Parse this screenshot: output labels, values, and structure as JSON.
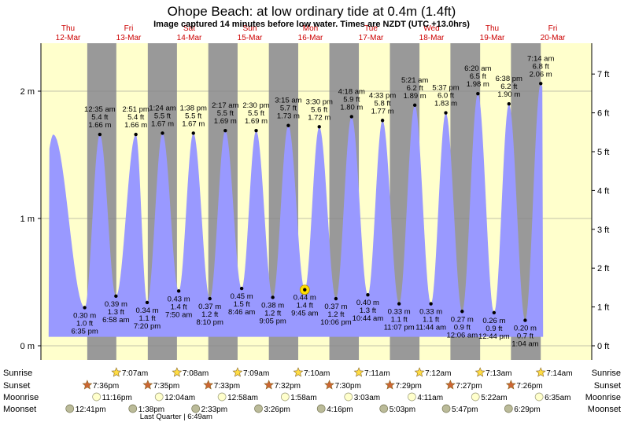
{
  "title": "Ohope Beach: at low  ordinary tide at 0.4m (1.4ft)",
  "subtitle": "Image captured 14 minutes before low water. Times are NZDT (UTC +13.0hrs)",
  "chart_data": {
    "type": "area",
    "x_range": [
      "2026-03-12T00:00",
      "2026-03-20T08:00"
    ],
    "ylim_m": [
      0,
      2.4
    ],
    "ylim_ft": [
      0,
      7.8
    ],
    "y_ticks_m": [
      {
        "v": 0,
        "label": "0 m"
      },
      {
        "v": 1,
        "label": "1 m"
      },
      {
        "v": 2,
        "label": "2 m"
      }
    ],
    "y_ticks_ft": [
      {
        "v": 0,
        "label": "0 ft"
      },
      {
        "v": 1,
        "label": "1 ft"
      },
      {
        "v": 2,
        "label": "2 ft"
      },
      {
        "v": 3,
        "label": "3 ft"
      },
      {
        "v": 4,
        "label": "4 ft"
      },
      {
        "v": 5,
        "label": "5 ft"
      },
      {
        "v": 6,
        "label": "6 ft"
      },
      {
        "v": 7,
        "label": "7 ft"
      }
    ],
    "days": [
      {
        "dow": "Thu",
        "date": "12-Mar",
        "day": 12
      },
      {
        "dow": "Fri",
        "date": "13-Mar",
        "day": 13
      },
      {
        "dow": "Sat",
        "date": "14-Mar",
        "day": 14
      },
      {
        "dow": "Sun",
        "date": "15-Mar",
        "day": 15
      },
      {
        "dow": "Mon",
        "date": "16-Mar",
        "day": 16
      },
      {
        "dow": "Tue",
        "date": "17-Mar",
        "day": 17
      },
      {
        "dow": "Wed",
        "date": "18-Mar",
        "day": 18
      },
      {
        "dow": "Thu",
        "date": "19-Mar",
        "day": 19
      },
      {
        "dow": "Fri",
        "date": "20-Mar",
        "day": 20
      }
    ],
    "unlabeled_highs": [
      {
        "day": 12,
        "time": "06:10",
        "m": 1.66
      }
    ],
    "tides": [
      {
        "type": "low",
        "day": 12,
        "t24": "18:35",
        "m": 0.3,
        "label_m": "0.30 m",
        "label_ft": "1.0 ft",
        "label_time": "6:35 pm"
      },
      {
        "type": "high",
        "day": 13,
        "t24": "00:35",
        "m": 1.66,
        "label_m": "1.66 m",
        "label_ft": "5.4 ft",
        "label_time": "12:35 am"
      },
      {
        "type": "low",
        "day": 13,
        "t24": "06:58",
        "m": 0.39,
        "label_m": "0.39 m",
        "label_ft": "1.3 ft",
        "label_time": "6:58 am"
      },
      {
        "type": "high",
        "day": 13,
        "t24": "14:51",
        "m": 1.66,
        "label_m": "1.66 m",
        "label_ft": "5.4 ft",
        "label_time": "2:51 pm"
      },
      {
        "type": "low",
        "day": 13,
        "t24": "19:20",
        "m": 0.34,
        "label_m": "0.34 m",
        "label_ft": "1.1 ft",
        "label_time": "7:20 pm"
      },
      {
        "type": "high",
        "day": 14,
        "t24": "01:24",
        "m": 1.67,
        "label_m": "1.67 m",
        "label_ft": "5.5 ft",
        "label_time": "1:24 am"
      },
      {
        "type": "low",
        "day": 14,
        "t24": "07:50",
        "m": 0.43,
        "label_m": "0.43 m",
        "label_ft": "1.4 ft",
        "label_time": "7:50 am"
      },
      {
        "type": "high",
        "day": 14,
        "t24": "13:38",
        "m": 1.67,
        "label_m": "1.67 m",
        "label_ft": "5.5 ft",
        "label_time": "1:38 pm"
      },
      {
        "type": "low",
        "day": 14,
        "t24": "20:10",
        "m": 0.37,
        "label_m": "0.37 m",
        "label_ft": "1.2 ft",
        "label_time": "8:10 pm"
      },
      {
        "type": "high",
        "day": 15,
        "t24": "02:17",
        "m": 1.69,
        "label_m": "1.69 m",
        "label_ft": "5.5 ft",
        "label_time": "2:17 am"
      },
      {
        "type": "low",
        "day": 15,
        "t24": "08:46",
        "m": 0.45,
        "label_m": "0.45 m",
        "label_ft": "1.5 ft",
        "label_time": "8:46 am"
      },
      {
        "type": "high",
        "day": 15,
        "t24": "14:30",
        "m": 1.69,
        "label_m": "1.69 m",
        "label_ft": "5.5 ft",
        "label_time": "2:30 pm"
      },
      {
        "type": "low",
        "day": 15,
        "t24": "21:05",
        "m": 0.38,
        "label_m": "0.38 m",
        "label_ft": "1.2 ft",
        "label_time": "9:05 pm"
      },
      {
        "type": "high",
        "day": 16,
        "t24": "03:15",
        "m": 1.73,
        "label_m": "1.73 m",
        "label_ft": "5.7 ft",
        "label_time": "3:15 am"
      },
      {
        "type": "low",
        "day": 16,
        "t24": "09:45",
        "m": 0.44,
        "label_m": "0.44 m",
        "label_ft": "1.4 ft",
        "label_time": "9:45 am",
        "current": true
      },
      {
        "type": "high",
        "day": 16,
        "t24": "15:30",
        "m": 1.72,
        "label_m": "1.72 m",
        "label_ft": "5.6 ft",
        "label_time": "3:30 pm"
      },
      {
        "type": "low",
        "day": 16,
        "t24": "22:06",
        "m": 0.37,
        "label_m": "0.37 m",
        "label_ft": "1.2 ft",
        "label_time": "10:06 pm"
      },
      {
        "type": "high",
        "day": 17,
        "t24": "04:18",
        "m": 1.8,
        "label_m": "1.80 m",
        "label_ft": "5.9 ft",
        "label_time": "4:18 am"
      },
      {
        "type": "low",
        "day": 17,
        "t24": "10:44",
        "m": 0.4,
        "label_m": "0.40 m",
        "label_ft": "1.3 ft",
        "label_time": "10:44 am"
      },
      {
        "type": "high",
        "day": 17,
        "t24": "16:33",
        "m": 1.77,
        "label_m": "1.77 m",
        "label_ft": "5.8 ft",
        "label_time": "4:33 pm"
      },
      {
        "type": "low",
        "day": 17,
        "t24": "23:07",
        "m": 0.33,
        "label_m": "0.33 m",
        "label_ft": "1.1 ft",
        "label_time": "11:07 pm"
      },
      {
        "type": "high",
        "day": 18,
        "t24": "05:21",
        "m": 1.89,
        "label_m": "1.89 m",
        "label_ft": "6.2 ft",
        "label_time": "5:21 am"
      },
      {
        "type": "low",
        "day": 18,
        "t24": "11:44",
        "m": 0.33,
        "label_m": "0.33 m",
        "label_ft": "1.1 ft",
        "label_time": "11:44 am"
      },
      {
        "type": "high",
        "day": 18,
        "t24": "17:37",
        "m": 1.83,
        "label_m": "1.83 m",
        "label_ft": "6.0 ft",
        "label_time": "5:37 pm"
      },
      {
        "type": "low",
        "day": 19,
        "t24": "00:06",
        "m": 0.27,
        "label_m": "0.27 m",
        "label_ft": "0.9 ft",
        "label_time": "12:06 am"
      },
      {
        "type": "high",
        "day": 19,
        "t24": "06:20",
        "m": 1.98,
        "label_m": "1.98 m",
        "label_ft": "6.5 ft",
        "label_time": "6:20 am"
      },
      {
        "type": "low",
        "day": 19,
        "t24": "12:44",
        "m": 0.26,
        "label_m": "0.26 m",
        "label_ft": "0.9 ft",
        "label_time": "12:44 pm"
      },
      {
        "type": "high",
        "day": 19,
        "t24": "18:38",
        "m": 1.9,
        "label_m": "1.90 m",
        "label_ft": "6.2 ft",
        "label_time": "6:38 pm"
      },
      {
        "type": "low",
        "day": 20,
        "t24": "01:04",
        "m": 0.2,
        "label_m": "0.20 m",
        "label_ft": "0.7 ft",
        "label_time": "1:04 am"
      },
      {
        "type": "high",
        "day": 20,
        "t24": "07:14",
        "m": 2.06,
        "label_m": "2.06 m",
        "label_ft": "6.8 ft",
        "label_time": "7:14 am"
      }
    ],
    "sun": [
      {
        "day": 12,
        "sunset": "19:36",
        "sunset_label": "7:36pm"
      },
      {
        "day": 13,
        "sunrise": "07:07",
        "sunrise_label": "7:07am",
        "sunset": "19:35",
        "sunset_label": "7:35pm"
      },
      {
        "day": 14,
        "sunrise": "07:08",
        "sunrise_label": "7:08am",
        "sunset": "19:33",
        "sunset_label": "7:33pm"
      },
      {
        "day": 15,
        "sunrise": "07:09",
        "sunrise_label": "7:09am",
        "sunset": "19:32",
        "sunset_label": "7:32pm"
      },
      {
        "day": 16,
        "sunrise": "07:10",
        "sunrise_label": "7:10am",
        "sunset": "19:30",
        "sunset_label": "7:30pm"
      },
      {
        "day": 17,
        "sunrise": "07:11",
        "sunrise_label": "7:11am",
        "sunset": "19:29",
        "sunset_label": "7:29pm"
      },
      {
        "day": 18,
        "sunrise": "07:12",
        "sunrise_label": "7:12am",
        "sunset": "19:27",
        "sunset_label": "7:27pm"
      },
      {
        "day": 19,
        "sunrise": "07:13",
        "sunrise_label": "7:13am",
        "sunset": "19:26",
        "sunset_label": "7:26pm"
      },
      {
        "day": 20,
        "sunrise": "07:14",
        "sunrise_label": "7:14am"
      }
    ],
    "moon": [
      {
        "day": 12,
        "moonrise": "23:16",
        "moonrise_label": "11:16pm",
        "moonset": "12:41",
        "moonset_label": "12:41pm"
      },
      {
        "day": 13,
        "moonset": "13:38",
        "moonset_label": "1:38pm"
      },
      {
        "day": 14,
        "moonrise": "00:04",
        "moonrise_label": "12:04am",
        "moonset": "14:33",
        "moonset_label": "2:33pm"
      },
      {
        "day": 15,
        "moonrise": "00:58",
        "moonrise_label": "12:58am",
        "moonset": "15:26",
        "moonset_label": "3:26pm"
      },
      {
        "day": 16,
        "moonrise": "01:58",
        "moonrise_label": "1:58am",
        "moonset": "16:16",
        "moonset_label": "4:16pm"
      },
      {
        "day": 17,
        "moonrise": "03:03",
        "moonrise_label": "3:03am",
        "moonset": "17:03",
        "moonset_label": "5:03pm"
      },
      {
        "day": 18,
        "moonrise": "04:11",
        "moonrise_label": "4:11am",
        "moonset": "17:47",
        "moonset_label": "5:47pm"
      },
      {
        "day": 19,
        "moonrise": "05:22",
        "moonrise_label": "5:22am",
        "moonset": "18:29",
        "moonset_label": "6:29pm"
      },
      {
        "day": 20,
        "moonrise": "06:35",
        "moonrise_label": "6:35am"
      }
    ],
    "moon_phase_note": "Last Quarter | 6:49am",
    "row_labels": {
      "sunrise": "Sunrise",
      "sunset": "Sunset",
      "moonrise": "Moonrise",
      "moonset": "Moonset"
    },
    "colors": {
      "day": "#ffffcc",
      "night": "#999999",
      "water": "#9999ff",
      "date_text": "#cc0000",
      "sunrise_star": "#ffdd44",
      "sunset_star": "#cc6633",
      "moonrise": "#ffffcc",
      "moonset": "#bbbb99"
    }
  }
}
